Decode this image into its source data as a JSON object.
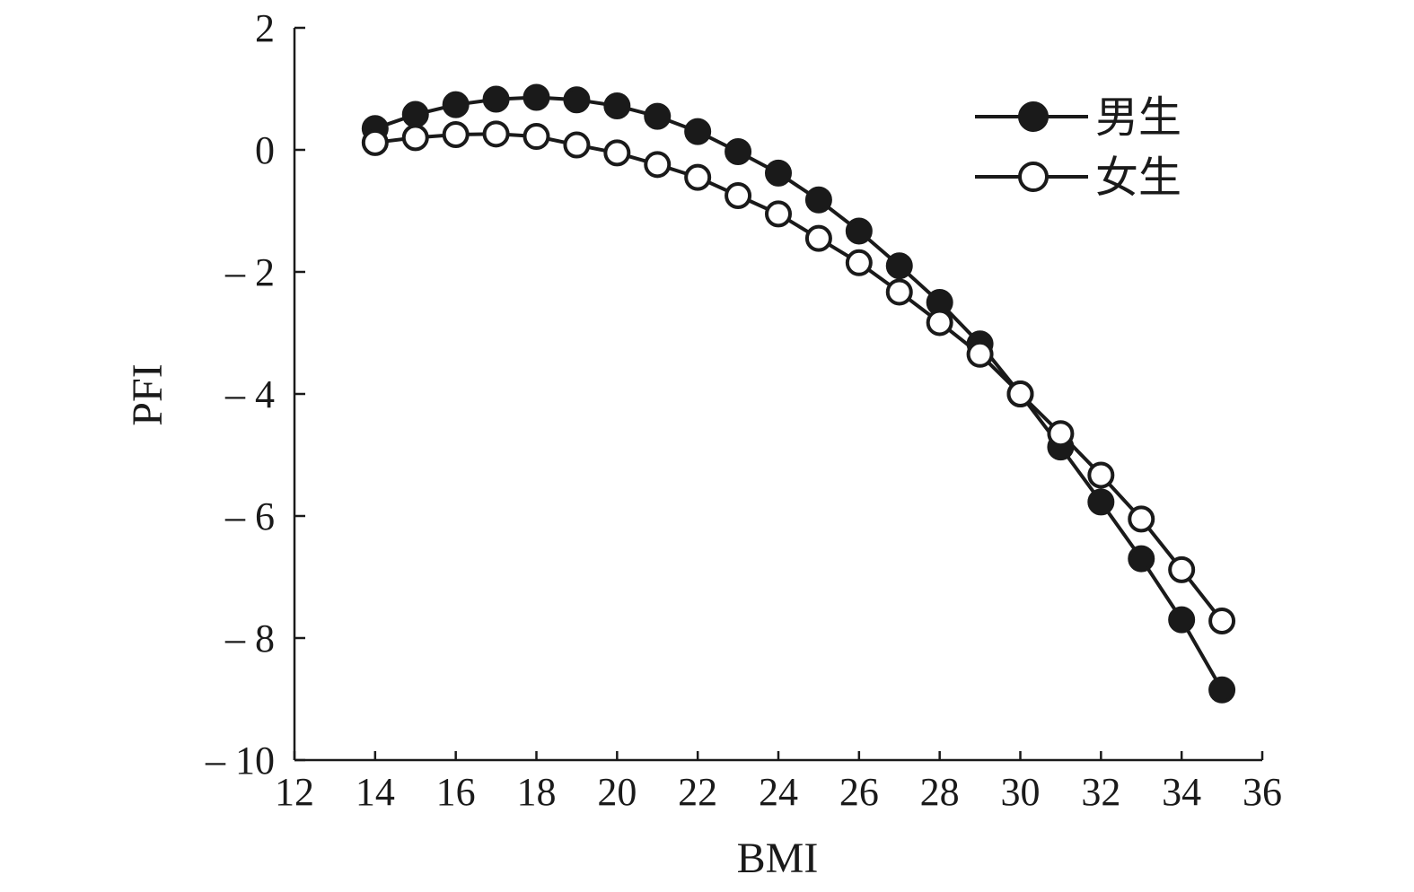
{
  "chart_data": {
    "type": "line",
    "title": "",
    "xlabel": "BMI",
    "ylabel": "PFI",
    "xlim": [
      12,
      36
    ],
    "ylim": [
      -10,
      2
    ],
    "xticks": [
      12,
      14,
      16,
      18,
      20,
      22,
      24,
      26,
      28,
      30,
      32,
      34,
      36
    ],
    "yticks": [
      2,
      0,
      -2,
      -4,
      -6,
      -8,
      -10
    ],
    "ytick_labels": [
      "2",
      "0",
      "– 2",
      "– 4",
      "– 6",
      "– 8",
      "– 10"
    ],
    "grid": false,
    "legend_position": "top-right",
    "x": [
      14,
      15,
      16,
      17,
      18,
      19,
      20,
      21,
      22,
      23,
      24,
      25,
      26,
      27,
      28,
      29,
      30,
      31,
      32,
      33,
      34,
      35
    ],
    "series": [
      {
        "name": "男生",
        "marker": "filled-circle",
        "values": [
          0.35,
          0.58,
          0.74,
          0.83,
          0.86,
          0.82,
          0.72,
          0.55,
          0.3,
          -0.03,
          -0.38,
          -0.82,
          -1.33,
          -1.9,
          -2.5,
          -3.18,
          -4.0,
          -4.87,
          -5.77,
          -6.7,
          -7.7,
          -8.85
        ]
      },
      {
        "name": "女生",
        "marker": "open-circle",
        "values": [
          0.12,
          0.2,
          0.25,
          0.26,
          0.22,
          0.08,
          -0.05,
          -0.24,
          -0.45,
          -0.75,
          -1.05,
          -1.45,
          -1.85,
          -2.33,
          -2.83,
          -3.35,
          -4.0,
          -4.65,
          -5.33,
          -6.05,
          -6.88,
          -7.72
        ]
      }
    ],
    "colors": {
      "line": "#1a1a1a",
      "marker_fill_male": "#1a1a1a",
      "marker_fill_female": "#ffffff"
    }
  }
}
